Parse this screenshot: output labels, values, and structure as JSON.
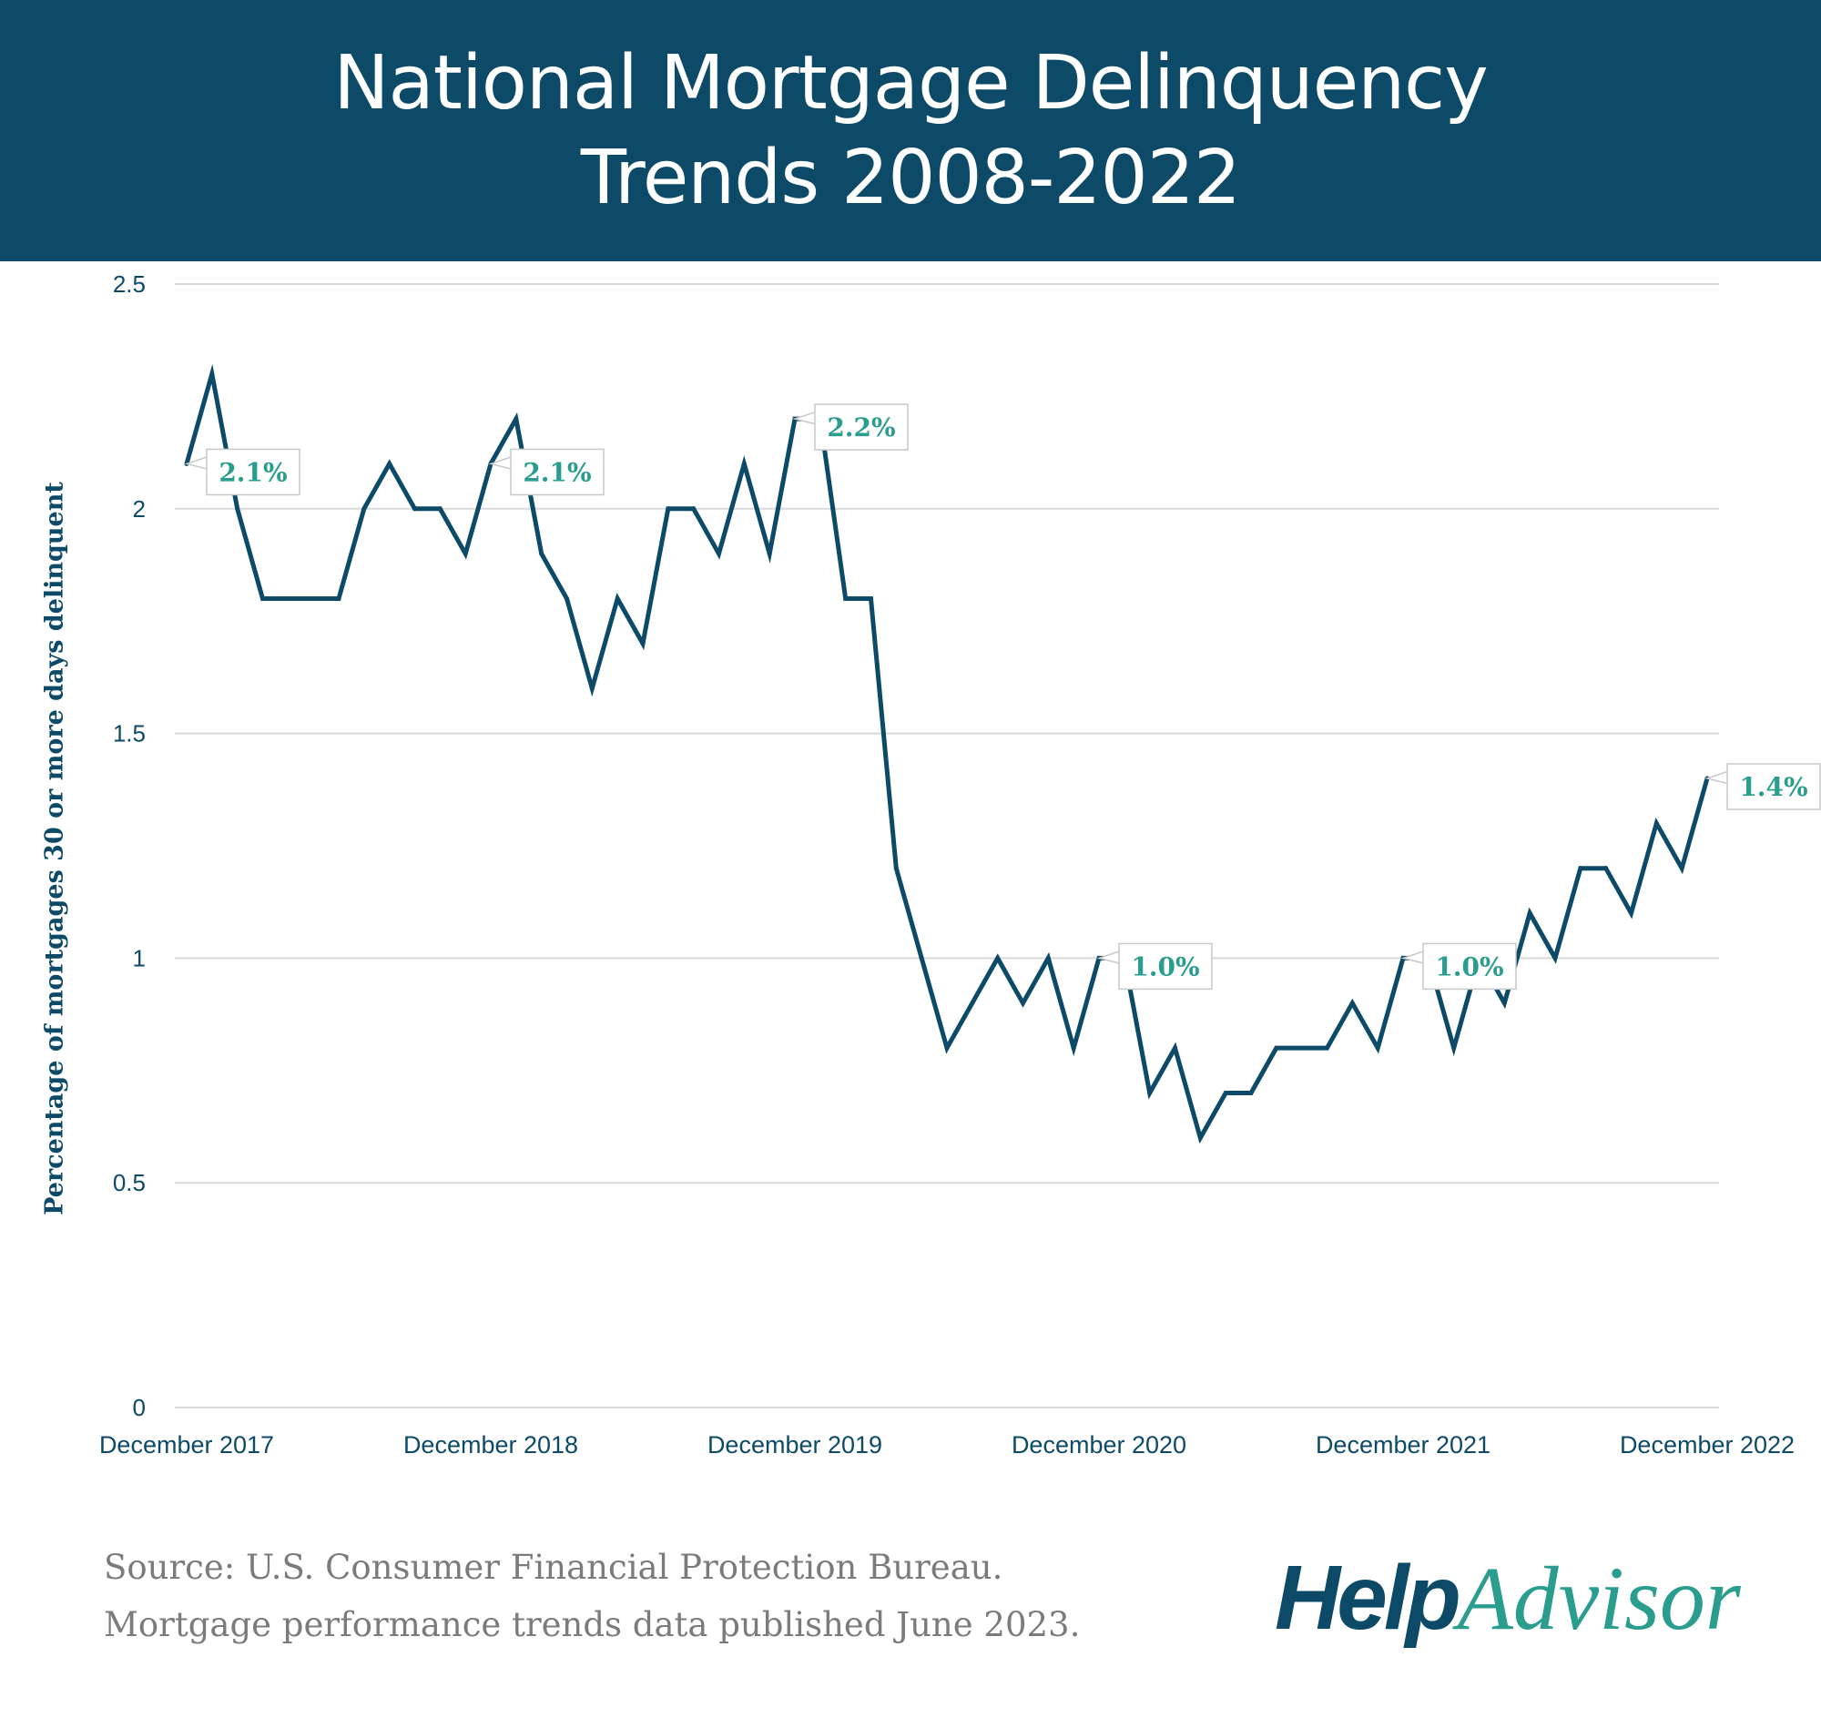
{
  "header": {
    "title_line1": "National Mortgage Delinquency",
    "title_line2": "Trends 2008-2022"
  },
  "colors": {
    "header_bg": "#0d4a68",
    "line": "#0d4a68",
    "label_text": "#2a9d8f",
    "grid": "#d9d9d9",
    "source_text": "#7b7b7b"
  },
  "chart_data": {
    "type": "line",
    "title": "National Mortgage Delinquency Trends 2008-2022",
    "xlabel": "",
    "ylabel": "Percentage of mortgages 30 or more days delinquent",
    "x_tick_labels": [
      "December 2017",
      "December 2018",
      "December 2019",
      "December 2020",
      "December 2021",
      "December 2022"
    ],
    "y_tick_labels": [
      "0",
      "0.5",
      "1",
      "1.5",
      "2",
      "2.5"
    ],
    "ylim": [
      0,
      2.5
    ],
    "grid": "horizontal",
    "legend": "none",
    "series": [
      {
        "values": [
          2.1,
          2.3,
          2.0,
          1.8,
          1.8,
          1.8,
          1.8,
          2.0,
          2.1,
          2.0,
          2.0,
          1.9,
          2.1,
          2.2,
          1.9,
          1.8,
          1.6,
          1.8,
          1.7,
          2.0,
          2.0,
          1.9,
          2.1,
          1.9,
          2.2,
          2.2,
          1.8,
          1.8,
          1.2,
          1.0,
          0.8,
          0.9,
          1.0,
          0.9,
          1.0,
          0.8,
          1.0,
          1.0,
          0.7,
          0.8,
          0.6,
          0.7,
          0.7,
          0.8,
          0.8,
          0.8,
          0.9,
          0.8,
          1.0,
          1.0,
          0.8,
          1.0,
          0.9,
          1.1,
          1.0,
          1.2,
          1.2,
          1.1,
          1.3,
          1.2,
          1.4
        ]
      }
    ],
    "annotations": [
      {
        "index": 0,
        "text": "2.1%"
      },
      {
        "index": 12,
        "text": "2.1%"
      },
      {
        "index": 24,
        "text": "2.2%"
      },
      {
        "index": 36,
        "text": "1.0%"
      },
      {
        "index": 48,
        "text": "1.0%"
      },
      {
        "index": 60,
        "text": "1.4%"
      }
    ]
  },
  "footer": {
    "source_line1": "Source: U.S. Consumer Financial Protection Bureau.",
    "source_line2": "Mortgage performance trends data published June 2023.",
    "logo_help": "Help",
    "logo_advisor": "Advisor"
  }
}
